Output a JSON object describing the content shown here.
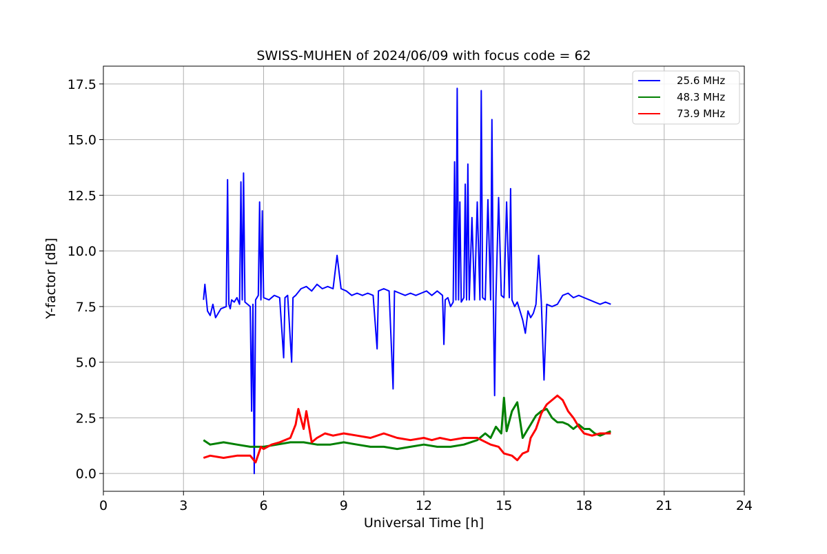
{
  "chart_data": {
    "type": "line",
    "title": "SWISS-MUHEN of 2024/06/09 with focus code = 62",
    "xlabel": "Universal Time [h]",
    "ylabel": "Y-factor [dB]",
    "xlim": [
      0,
      24
    ],
    "ylim": [
      -0.8,
      18.3
    ],
    "xticks": [
      0,
      3,
      6,
      9,
      12,
      15,
      18,
      21,
      24
    ],
    "xtick_labels": [
      "0",
      "3",
      "6",
      "9",
      "12",
      "15",
      "18",
      "21",
      "24"
    ],
    "yticks": [
      0,
      2.5,
      5,
      7.5,
      10,
      12.5,
      15,
      17.5
    ],
    "ytick_labels": [
      "0.0",
      "2.5",
      "5.0",
      "7.5",
      "10.0",
      "12.5",
      "15.0",
      "17.5"
    ],
    "grid": true,
    "legend_position": "top-right",
    "series": [
      {
        "name": "25.6 MHz",
        "color": "#0000ff",
        "x": [
          3.75,
          3.8,
          3.9,
          4.0,
          4.1,
          4.2,
          4.4,
          4.6,
          4.65,
          4.7,
          4.75,
          4.8,
          4.9,
          5.0,
          5.1,
          5.15,
          5.2,
          5.25,
          5.3,
          5.4,
          5.5,
          5.55,
          5.6,
          5.65,
          5.7,
          5.8,
          5.85,
          5.9,
          5.95,
          6.0,
          6.2,
          6.4,
          6.6,
          6.75,
          6.8,
          6.9,
          7.05,
          7.1,
          7.2,
          7.4,
          7.6,
          7.8,
          8.0,
          8.2,
          8.4,
          8.6,
          8.75,
          8.9,
          9.1,
          9.3,
          9.5,
          9.7,
          9.9,
          10.1,
          10.25,
          10.3,
          10.5,
          10.7,
          10.85,
          10.9,
          11.1,
          11.3,
          11.5,
          11.7,
          11.9,
          12.1,
          12.3,
          12.5,
          12.7,
          12.75,
          12.8,
          12.9,
          13.0,
          13.1,
          13.15,
          13.2,
          13.25,
          13.3,
          13.35,
          13.4,
          13.5,
          13.55,
          13.6,
          13.65,
          13.7,
          13.8,
          13.9,
          14.0,
          14.1,
          14.15,
          14.2,
          14.3,
          14.4,
          14.5,
          14.55,
          14.6,
          14.65,
          14.7,
          14.8,
          14.9,
          15.0,
          15.1,
          15.2,
          15.25,
          15.3,
          15.4,
          15.5,
          15.6,
          15.7,
          15.8,
          15.9,
          16.0,
          16.1,
          16.2,
          16.3,
          16.4,
          16.5,
          16.6,
          16.8,
          17.0,
          17.2,
          17.4,
          17.6,
          17.8,
          18.0,
          18.2,
          18.4,
          18.6,
          18.8,
          19.0
        ],
        "y": [
          7.8,
          8.5,
          7.3,
          7.1,
          7.6,
          7.0,
          7.4,
          7.5,
          13.2,
          7.6,
          7.4,
          7.8,
          7.7,
          7.9,
          7.6,
          13.1,
          7.8,
          13.5,
          7.7,
          7.6,
          7.5,
          2.8,
          7.6,
          0.0,
          7.8,
          8.0,
          12.2,
          7.8,
          11.8,
          7.9,
          7.8,
          8.0,
          7.9,
          5.2,
          7.9,
          8.0,
          5.0,
          7.9,
          8.0,
          8.3,
          8.4,
          8.2,
          8.5,
          8.3,
          8.4,
          8.3,
          9.8,
          8.3,
          8.2,
          8.0,
          8.1,
          8.0,
          8.1,
          8.0,
          5.6,
          8.2,
          8.3,
          8.2,
          3.8,
          8.2,
          8.1,
          8.0,
          8.1,
          8.0,
          8.1,
          8.2,
          8.0,
          8.2,
          8.0,
          5.8,
          7.8,
          7.9,
          7.5,
          7.7,
          14.0,
          7.8,
          17.3,
          7.8,
          12.2,
          7.7,
          7.9,
          13.0,
          7.8,
          13.9,
          7.8,
          11.5,
          7.8,
          12.2,
          7.8,
          17.2,
          7.9,
          7.8,
          12.3,
          7.8,
          15.9,
          7.8,
          3.5,
          7.9,
          12.4,
          8.0,
          7.9,
          12.2,
          7.9,
          12.8,
          7.8,
          7.5,
          7.7,
          7.3,
          6.9,
          6.3,
          7.3,
          7.0,
          7.2,
          7.6,
          9.8,
          7.7,
          4.2,
          7.6,
          7.5,
          7.6,
          8.0,
          8.1,
          7.9,
          8.0,
          7.9,
          7.8,
          7.7,
          7.6,
          7.7,
          7.6
        ]
      },
      {
        "name": "48.3 MHz",
        "color": "#008000",
        "x": [
          3.75,
          4.0,
          4.5,
          5.0,
          5.5,
          6.0,
          6.5,
          7.0,
          7.5,
          8.0,
          8.5,
          9.0,
          9.5,
          10.0,
          10.5,
          11.0,
          11.5,
          12.0,
          12.5,
          13.0,
          13.5,
          14.0,
          14.3,
          14.5,
          14.7,
          14.9,
          15.0,
          15.1,
          15.3,
          15.5,
          15.7,
          15.9,
          16.0,
          16.2,
          16.4,
          16.6,
          16.8,
          17.0,
          17.2,
          17.4,
          17.6,
          17.8,
          18.0,
          18.2,
          18.4,
          18.6,
          18.8,
          19.0
        ],
        "y": [
          1.5,
          1.3,
          1.4,
          1.3,
          1.2,
          1.2,
          1.3,
          1.4,
          1.4,
          1.3,
          1.3,
          1.4,
          1.3,
          1.2,
          1.2,
          1.1,
          1.2,
          1.3,
          1.2,
          1.2,
          1.3,
          1.5,
          1.8,
          1.6,
          2.1,
          1.8,
          3.4,
          1.9,
          2.8,
          3.2,
          1.6,
          2.0,
          2.2,
          2.6,
          2.8,
          2.9,
          2.5,
          2.3,
          2.3,
          2.2,
          2.0,
          2.2,
          2.0,
          2.0,
          1.8,
          1.7,
          1.8,
          1.9
        ]
      },
      {
        "name": "73.9 MHz",
        "color": "#ff0000",
        "x": [
          3.75,
          4.0,
          4.5,
          5.0,
          5.5,
          5.7,
          5.9,
          6.0,
          6.3,
          6.6,
          7.0,
          7.2,
          7.3,
          7.5,
          7.6,
          7.8,
          8.0,
          8.3,
          8.6,
          9.0,
          9.5,
          10.0,
          10.5,
          11.0,
          11.5,
          12.0,
          12.3,
          12.6,
          13.0,
          13.5,
          14.0,
          14.5,
          14.8,
          15.0,
          15.3,
          15.5,
          15.7,
          15.9,
          16.0,
          16.2,
          16.4,
          16.6,
          16.8,
          17.0,
          17.2,
          17.4,
          17.6,
          17.8,
          18.0,
          18.3,
          18.6,
          19.0
        ],
        "y": [
          0.7,
          0.8,
          0.7,
          0.8,
          0.8,
          0.5,
          1.2,
          1.1,
          1.3,
          1.4,
          1.6,
          2.2,
          2.9,
          2.0,
          2.8,
          1.4,
          1.6,
          1.8,
          1.7,
          1.8,
          1.7,
          1.6,
          1.8,
          1.6,
          1.5,
          1.6,
          1.5,
          1.6,
          1.5,
          1.6,
          1.6,
          1.3,
          1.2,
          0.9,
          0.8,
          0.6,
          0.9,
          1.0,
          1.6,
          2.0,
          2.7,
          3.1,
          3.3,
          3.5,
          3.3,
          2.8,
          2.5,
          2.1,
          1.8,
          1.7,
          1.8,
          1.8
        ]
      }
    ]
  }
}
